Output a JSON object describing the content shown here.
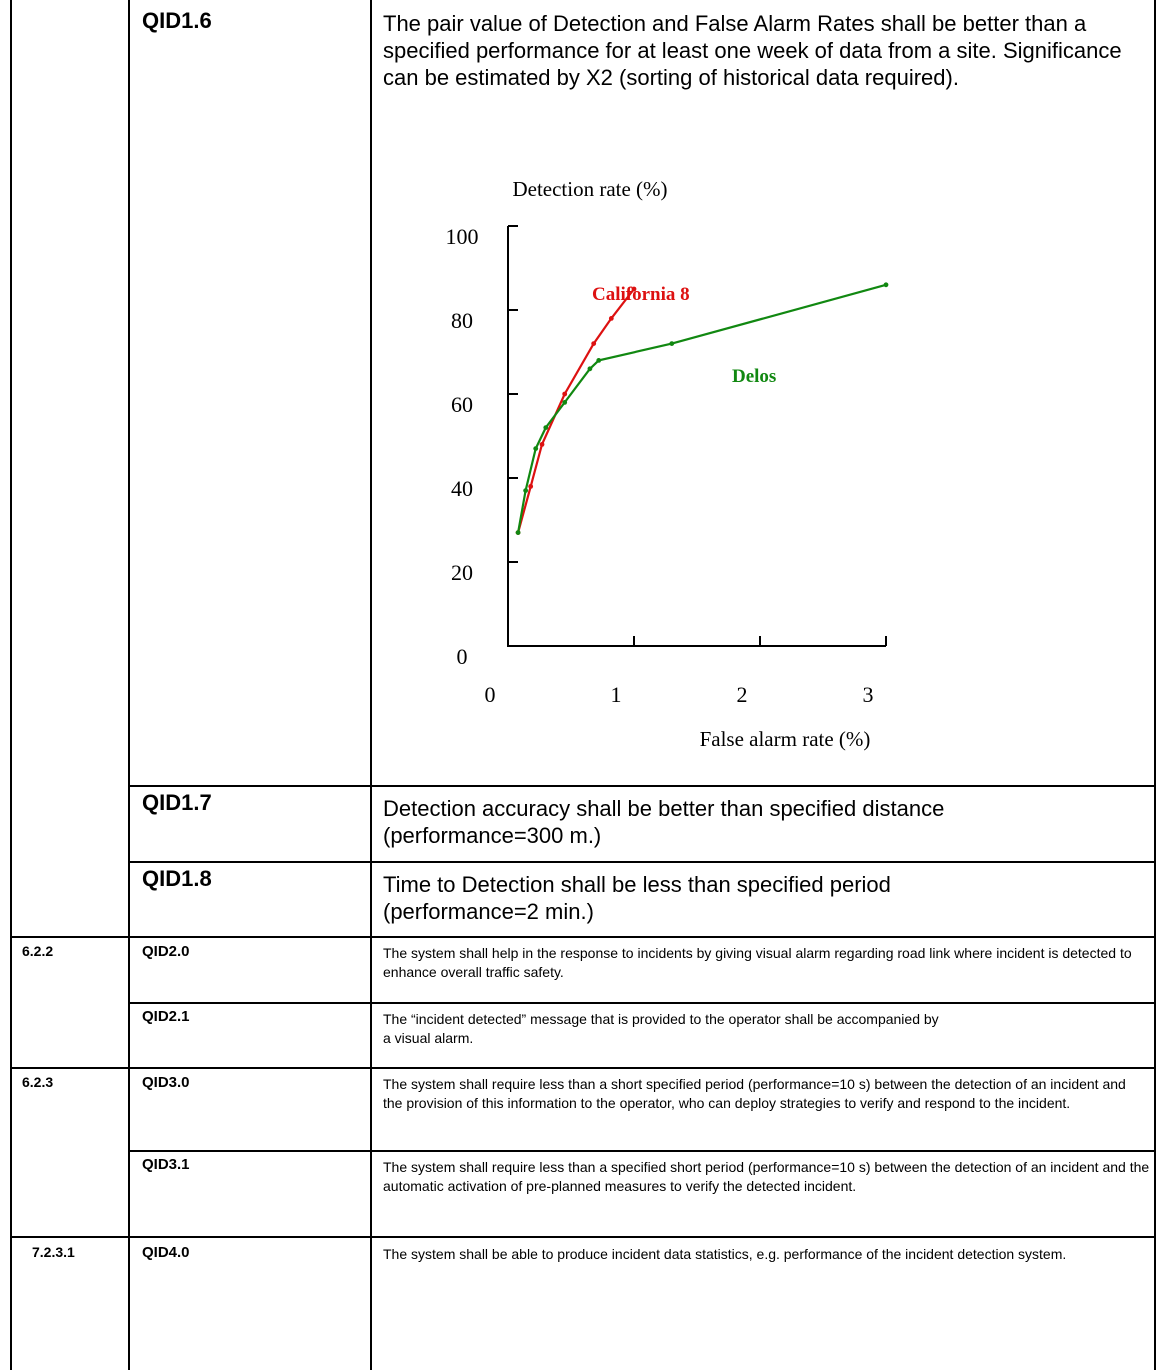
{
  "rows": [
    {
      "section": "",
      "qid": "QID1.6",
      "text": "The pair value of Detection and False Alarm Rates shall be better than a specified performance for at least one week of data from a site.  Significance can be estimated by X2 (sorting of historical data required)."
    },
    {
      "section": "",
      "qid": "QID1.7",
      "text": "Detection accuracy shall be better than specified distance (performance=300 m.)"
    },
    {
      "section": "",
      "qid": "QID1.8",
      "text": "Time to Detection shall be less than specified period (performance=2 min.)"
    },
    {
      "section": "6.2.2",
      "qid": "QID2.0",
      "text": "The system shall help in the response to incidents by giving visual alarm regarding road link where incident is detected to enhance overall traffic safety."
    },
    {
      "section": "",
      "qid": "QID2.1",
      "text": "The “incident detected” message that is provided to the operator shall be accompanied by a visual alarm."
    },
    {
      "section": "6.2.3",
      "qid": "QID3.0",
      "text": "The system shall require less than a short specified period (performance=10 s) between the detection of an incident and the provision of this information to the operator, who can deploy strategies to verify and respond to the incident."
    },
    {
      "section": "",
      "qid": "QID3.1",
      "text": "The system shall require less than a specified short period (performance=10 s) between the detection of an incident and the automatic activation of pre-planned measures to verify the detected incident."
    },
    {
      "section": "7.2.3.1",
      "qid": "QID4.0",
      "text": "The system shall be able to produce incident data statistics, e.g. performance of the incident detection system."
    }
  ],
  "chart_data": {
    "type": "line",
    "title": "",
    "xlabel": "False alarm rate (%)",
    "ylabel": "Detection rate (%)",
    "xlim": [
      0,
      3
    ],
    "ylim": [
      0,
      100
    ],
    "xticks": [
      "0",
      "1",
      "2",
      "3"
    ],
    "yticks": [
      "0",
      "20",
      "40",
      "60",
      "80",
      "100"
    ],
    "grid": false,
    "series": [
      {
        "name": "California 8",
        "color": "#dd1111",
        "points": [
          [
            0.08,
            27
          ],
          [
            0.18,
            38
          ],
          [
            0.27,
            48
          ],
          [
            0.45,
            60
          ],
          [
            0.68,
            72
          ],
          [
            0.82,
            78
          ],
          [
            1.0,
            85
          ]
        ]
      },
      {
        "name": "Delos",
        "color": "#118811",
        "points": [
          [
            0.08,
            27
          ],
          [
            0.14,
            37
          ],
          [
            0.22,
            47
          ],
          [
            0.3,
            52
          ],
          [
            0.45,
            58
          ],
          [
            0.65,
            66
          ],
          [
            0.72,
            68
          ],
          [
            1.3,
            72
          ],
          [
            3.0,
            86
          ]
        ]
      }
    ]
  }
}
